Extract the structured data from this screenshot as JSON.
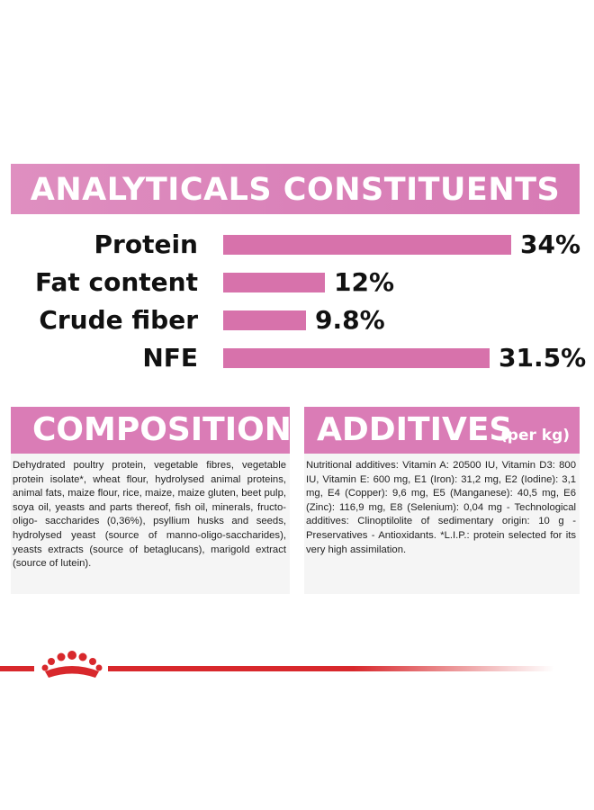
{
  "analytics": {
    "title": "ANALYTICALS CONSTITUENTS",
    "rows": [
      {
        "label": "Protein",
        "value": "34%",
        "percent": 34
      },
      {
        "label": "Fat content",
        "value": "12%",
        "percent": 12
      },
      {
        "label": "Crude fiber",
        "value": "9.8%",
        "percent": 9.8
      },
      {
        "label": "NFE",
        "value": "31.5%",
        "percent": 31.5
      }
    ]
  },
  "composition": {
    "title": "COMPOSITION",
    "text": "Dehydrated poultry protein, vegetable fibres, vegetable protein isolate*, wheat flour, hydrolysed animal proteins, animal fats, maize flour, rice, maize, maize gluten, beet pulp, soya oil, yeasts and parts thereof, fish oil, minerals, fructo-oligo- saccharides (0,36%), psyllium husks and seeds, hydrolysed yeast (source of manno-oligo-saccharides), yeasts extracts (source of betaglucans), marigold extract (source of lutein)."
  },
  "additives": {
    "title": "ADDITIVES",
    "title_suffix": "(per kg)",
    "text": "Nutritional additives: Vitamin A: 20500 IU, Vitamin D3: 800 IU, Vitamin E: 600 mg, E1 (Iron): 31,2 mg, E2 (Iodine): 3,1 mg, E4 (Copper): 9,6 mg, E5 (Manganese): 40,5 mg, E6 (Zinc): 116,9 mg, E8 (Selenium): 0,04 mg - Technological additives: Clinoptilolite of sedimentary origin: 10 g - Preservatives - Antioxidants. *L.I.P.: protein selected for its very high assimilation."
  },
  "colors": {
    "pink": "#d772ab",
    "banner_pink": "#da82b9",
    "brand_red": "#d8282c",
    "text_box_bg": "#f5f5f5"
  },
  "icons": [
    "royal-canin-crown-icon"
  ]
}
